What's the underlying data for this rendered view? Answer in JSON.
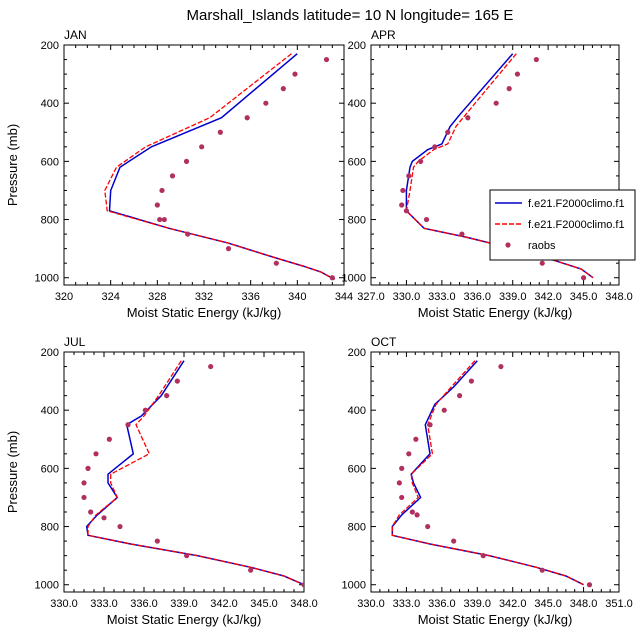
{
  "figure_title": "Marshall_Islands  latitude= 10 N longitude= 165 E",
  "legend": {
    "placement": "right, between upper panels",
    "entries": [
      {
        "label": "f.e21.F2000climo.f1",
        "style": "solid",
        "color": "#0000cc"
      },
      {
        "label": "f.e21.F2000climo.f1",
        "style": "dashed",
        "color": "#ff0000"
      },
      {
        "label": "raobs",
        "style": "dot",
        "color": "#b03060"
      }
    ]
  },
  "chart_data": [
    {
      "type": "line",
      "title": "JAN",
      "xlabel": "Moist Static Energy (kJ/kg)",
      "ylabel": "Pressure (mb)",
      "xlim": [
        320,
        344
      ],
      "ylim": [
        1025,
        200
      ],
      "xticks": [
        "320",
        "324",
        "328",
        "332",
        "336",
        "340",
        "344"
      ],
      "yticks": [
        "200",
        "400",
        "600",
        "800",
        "1000"
      ],
      "series": [
        {
          "name": "f.e21.F2000climo.f1",
          "style": "solid",
          "color": "#0000cc",
          "x": [
            340.0,
            333.5,
            327.5,
            324.8,
            324.0,
            323.9,
            329.0,
            334.0,
            338.0,
            340.5,
            342.0,
            342.7,
            343.2
          ],
          "y": [
            230,
            450,
            550,
            620,
            700,
            770,
            830,
            880,
            930,
            960,
            980,
            995,
            1005
          ]
        },
        {
          "name": "f.e21.F2000climo.f1",
          "style": "dashed",
          "color": "#ff0000",
          "x": [
            339.5,
            332.5,
            327.0,
            324.5,
            323.5,
            323.7,
            329.0,
            334.0,
            338.0,
            340.5,
            342.0,
            342.7,
            343.2
          ],
          "y": [
            230,
            450,
            550,
            620,
            700,
            770,
            830,
            880,
            930,
            960,
            980,
            995,
            1005
          ]
        },
        {
          "name": "raobs",
          "style": "dot",
          "color": "#b03060",
          "x": [
            342.5,
            339.8,
            338.8,
            337.3,
            335.7,
            333.4,
            331.8,
            330.5,
            329.3,
            328.4,
            328.0,
            328.2,
            328.6,
            330.6,
            334.1,
            338.2,
            343.0
          ],
          "y": [
            250,
            300,
            350,
            400,
            450,
            500,
            550,
            600,
            650,
            700,
            750,
            800,
            800,
            850,
            900,
            950,
            1000
          ]
        }
      ]
    },
    {
      "type": "line",
      "title": "APR",
      "xlabel": "Moist Static Energy (kJ/kg)",
      "ylabel": "",
      "xlim": [
        327,
        348
      ],
      "ylim": [
        1025,
        200
      ],
      "xticks": [
        "327.0",
        "330.0",
        "333.0",
        "336.0",
        "339.0",
        "342.0",
        "345.0",
        "348.0"
      ],
      "yticks": [
        "200",
        "400",
        "600",
        "800",
        "1000"
      ],
      "series": [
        {
          "name": "f.e21.F2000climo.f1",
          "style": "solid",
          "color": "#0000cc",
          "x": [
            339.0,
            334.5,
            333.7,
            333.0,
            331.8,
            330.5,
            330.3,
            330.0,
            330.0,
            331.5,
            335.0,
            339.0,
            342.5,
            344.8,
            345.8
          ],
          "y": [
            230,
            440,
            480,
            540,
            560,
            600,
            620,
            700,
            770,
            830,
            860,
            900,
            940,
            970,
            1000
          ]
        },
        {
          "name": "f.e21.F2000climo.f1",
          "style": "dashed",
          "color": "#ff0000",
          "x": [
            339.3,
            335.0,
            334.2,
            333.5,
            332.3,
            331.0,
            330.6,
            330.3,
            330.0,
            331.5,
            335.0,
            339.0,
            342.5,
            344.8,
            345.8
          ],
          "y": [
            230,
            440,
            480,
            540,
            560,
            600,
            620,
            700,
            770,
            830,
            860,
            900,
            940,
            970,
            1000
          ]
        },
        {
          "name": "raobs",
          "style": "dot",
          "color": "#b03060",
          "x": [
            341.0,
            339.4,
            338.7,
            337.6,
            335.2,
            333.5,
            332.4,
            331.2,
            330.2,
            329.7,
            329.6,
            330.0,
            331.7,
            334.7,
            337.6,
            341.5,
            345.0
          ],
          "y": [
            250,
            300,
            350,
            400,
            450,
            500,
            550,
            600,
            650,
            700,
            750,
            770,
            800,
            850,
            900,
            950,
            1000
          ]
        }
      ]
    },
    {
      "type": "line",
      "title": "JUL",
      "xlabel": "Moist Static Energy (kJ/kg)",
      "ylabel": "Pressure (mb)",
      "xlim": [
        330,
        348
      ],
      "ylim": [
        1025,
        200
      ],
      "xticks": [
        "330.0",
        "333.0",
        "336.0",
        "339.0",
        "342.0",
        "345.0",
        "348.0"
      ],
      "yticks": [
        "200",
        "400",
        "600",
        "800",
        "1000"
      ],
      "series": [
        {
          "name": "f.e21.F2000climo.f1",
          "style": "solid",
          "color": "#0000cc",
          "x": [
            339.0,
            337.3,
            335.8,
            334.7,
            335.2,
            333.3,
            333.3,
            334.0,
            332.5,
            331.7,
            331.8,
            335.0,
            340.0,
            344.0,
            346.5,
            348.0
          ],
          "y": [
            230,
            350,
            420,
            450,
            550,
            620,
            650,
            700,
            760,
            800,
            830,
            860,
            900,
            940,
            970,
            1000
          ]
        },
        {
          "name": "f.e21.F2000climo.f1",
          "style": "dashed",
          "color": "#ff0000",
          "x": [
            338.8,
            337.1,
            336.0,
            335.4,
            336.4,
            333.5,
            333.5,
            334.0,
            332.4,
            331.8,
            331.8,
            335.0,
            340.0,
            344.0,
            346.5,
            348.0
          ],
          "y": [
            230,
            350,
            420,
            450,
            550,
            620,
            650,
            700,
            760,
            800,
            830,
            860,
            900,
            940,
            970,
            1000
          ]
        },
        {
          "name": "raobs",
          "style": "dot",
          "color": "#b03060",
          "x": [
            341.0,
            338.5,
            337.7,
            336.1,
            334.8,
            333.4,
            332.4,
            331.8,
            331.5,
            331.5,
            332.0,
            333.0,
            334.2,
            337.0,
            339.2,
            344.0,
            348.0
          ],
          "y": [
            250,
            300,
            350,
            400,
            450,
            500,
            550,
            600,
            650,
            700,
            750,
            770,
            800,
            850,
            900,
            950,
            1000
          ]
        }
      ]
    },
    {
      "type": "line",
      "title": "OCT",
      "xlabel": "Moist Static Energy (kJ/kg)",
      "ylabel": "",
      "xlim": [
        330,
        351
      ],
      "ylim": [
        1025,
        200
      ],
      "xticks": [
        "330.0",
        "333.0",
        "336.0",
        "339.0",
        "342.0",
        "345.0",
        "348.0",
        "351.0"
      ],
      "yticks": [
        "200",
        "400",
        "600",
        "800",
        "1000"
      ],
      "series": [
        {
          "name": "f.e21.F2000climo.f1",
          "style": "solid",
          "color": "#0000cc",
          "x": [
            339.0,
            337.0,
            335.4,
            334.6,
            335.0,
            333.4,
            333.6,
            334.2,
            332.6,
            331.8,
            331.8,
            335.0,
            340.0,
            344.0,
            346.5,
            348.0
          ],
          "y": [
            230,
            320,
            380,
            450,
            550,
            620,
            650,
            700,
            760,
            800,
            830,
            860,
            900,
            940,
            970,
            1000
          ]
        },
        {
          "name": "f.e21.F2000climo.f1",
          "style": "dashed",
          "color": "#ff0000",
          "x": [
            338.8,
            336.8,
            335.5,
            334.8,
            335.2,
            333.4,
            333.5,
            334.0,
            332.4,
            331.8,
            331.8,
            335.0,
            340.0,
            344.0,
            346.5,
            348.0
          ],
          "y": [
            230,
            320,
            380,
            450,
            550,
            620,
            650,
            700,
            760,
            800,
            830,
            860,
            900,
            940,
            970,
            1000
          ]
        },
        {
          "name": "raobs",
          "style": "dot",
          "color": "#b03060",
          "x": [
            341.0,
            338.5,
            337.5,
            336.2,
            335.0,
            333.8,
            333.2,
            332.6,
            332.4,
            332.6,
            333.5,
            333.9,
            334.8,
            337.0,
            339.5,
            344.5,
            348.5
          ],
          "y": [
            250,
            300,
            350,
            400,
            450,
            500,
            550,
            600,
            650,
            700,
            750,
            760,
            800,
            850,
            900,
            950,
            1000
          ]
        }
      ]
    }
  ]
}
